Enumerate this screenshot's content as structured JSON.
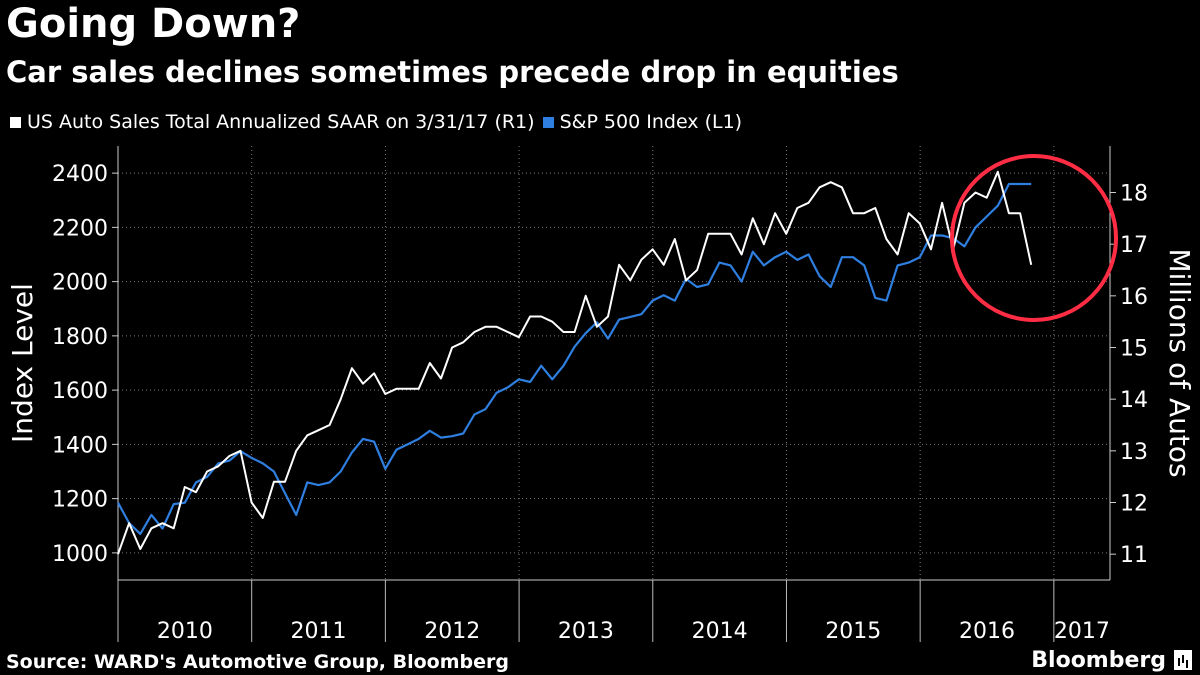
{
  "header": {
    "title": "Going Down?",
    "subtitle": "Car sales declines sometimes precede drop in equities"
  },
  "legend": {
    "auto_label": "US Auto Sales Total Annualized SAAR  on 3/31/17 (R1)",
    "sp_label": "S&P 500 Index  (L1)"
  },
  "footer": {
    "source": "Source: WARD's Automotive Group, Bloomberg",
    "brand": "Bloomberg"
  },
  "chart_data": {
    "type": "line",
    "title": "Going Down?",
    "subtitle": "Car sales declines sometimes precede drop in equities",
    "ylabel_left": "Index Level",
    "ylabel_right": "Millions of Autos",
    "ylim_left": [
      900,
      2500
    ],
    "ylim_right": [
      10.5,
      18.9
    ],
    "left_ticks": [
      1000,
      1200,
      1400,
      1600,
      1800,
      2000,
      2200,
      2400
    ],
    "right_ticks": [
      11,
      12,
      13,
      14,
      15,
      16,
      17,
      18
    ],
    "x_ticks": [
      "2010",
      "2011",
      "2012",
      "2013",
      "2014",
      "2015",
      "2016",
      "2017"
    ],
    "xlim": [
      2010.0,
      2017.42
    ],
    "grid": true,
    "legend_position": "top-left",
    "annotation": "red circle around 2016-2017 values",
    "colors": {
      "auto": "#ffffff",
      "sp": "#2f7fe0",
      "annotation": "#ff2d44"
    },
    "series": [
      {
        "name": "US Auto Sales Total Annualized SAAR  on 3/31/17 (R1)",
        "axis": "right",
        "start": 2010.0,
        "step": 0.0833,
        "values": [
          11.0,
          11.6,
          11.1,
          11.5,
          11.6,
          11.5,
          12.3,
          12.2,
          12.6,
          12.7,
          12.9,
          13.0,
          12.0,
          11.7,
          12.4,
          12.4,
          13.0,
          13.3,
          13.4,
          13.5,
          14.0,
          14.6,
          14.3,
          14.5,
          14.1,
          14.2,
          14.2,
          14.2,
          14.7,
          14.4,
          15.0,
          15.1,
          15.3,
          15.4,
          15.4,
          15.3,
          15.2,
          15.6,
          15.6,
          15.5,
          15.3,
          15.3,
          16.0,
          15.4,
          15.6,
          16.6,
          16.3,
          16.7,
          16.9,
          16.6,
          17.1,
          16.3,
          16.5,
          17.2,
          17.2,
          17.2,
          16.8,
          17.5,
          17.0,
          17.6,
          17.2,
          17.7,
          17.8,
          18.1,
          18.2,
          18.1,
          17.6,
          17.6,
          17.7,
          17.1,
          16.8,
          17.6,
          17.4,
          16.9,
          17.8,
          16.9,
          17.8,
          18.0,
          17.9,
          18.4,
          17.6,
          17.6,
          16.6
        ]
      },
      {
        "name": "S&P 500 Index  (L1)",
        "axis": "left",
        "start": 2010.0,
        "step": 0.0833,
        "values": [
          1185,
          1110,
          1070,
          1140,
          1090,
          1180,
          1185,
          1260,
          1280,
          1330,
          1340,
          1375,
          1350,
          1330,
          1300,
          1220,
          1140,
          1260,
          1250,
          1260,
          1300,
          1370,
          1420,
          1410,
          1310,
          1380,
          1400,
          1420,
          1450,
          1425,
          1430,
          1440,
          1510,
          1530,
          1590,
          1610,
          1640,
          1630,
          1690,
          1640,
          1690,
          1760,
          1810,
          1850,
          1790,
          1860,
          1870,
          1880,
          1930,
          1950,
          1930,
          2010,
          1980,
          1990,
          2070,
          2060,
          2000,
          2110,
          2060,
          2090,
          2110,
          2080,
          2100,
          2020,
          1980,
          2090,
          2090,
          2060,
          1940,
          1930,
          2060,
          2070,
          2090,
          2170,
          2170,
          2160,
          2130,
          2200,
          2240,
          2280,
          2360,
          2360,
          2360
        ]
      }
    ]
  }
}
